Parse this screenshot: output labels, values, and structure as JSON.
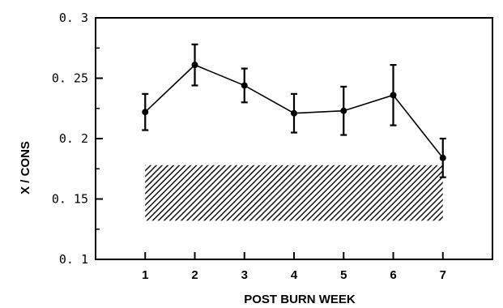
{
  "chart_data": {
    "type": "line",
    "xlabel": "POST BURN WEEK",
    "ylabel": "X / CONS",
    "xlim": [
      0,
      8
    ],
    "ylim": [
      0.1,
      0.3
    ],
    "x_ticks": [
      1,
      2,
      3,
      4,
      5,
      6,
      7
    ],
    "x_tick_labels": [
      "1",
      "2",
      "3",
      "4",
      "5",
      "6",
      "7"
    ],
    "y_ticks": [
      0.1,
      0.15,
      0.2,
      0.25,
      0.3
    ],
    "y_tick_labels": [
      "0. 1",
      "0. 15",
      "0. 2",
      "0. 25",
      "0. 3"
    ],
    "grid": false,
    "series": [
      {
        "x": [
          1,
          2,
          3,
          4,
          5,
          6,
          7
        ],
        "y": [
          0.222,
          0.261,
          0.244,
          0.221,
          0.223,
          0.236,
          0.184
        ],
        "error": [
          0.015,
          0.017,
          0.014,
          0.016,
          0.02,
          0.025,
          0.016
        ],
        "color": "#000000"
      }
    ],
    "shaded_band": {
      "x_range": [
        1,
        7
      ],
      "y_range": [
        0.132,
        0.178
      ],
      "pattern": "diagonal-hatch"
    }
  }
}
